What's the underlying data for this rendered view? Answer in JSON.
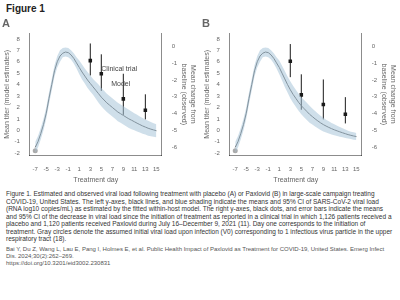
{
  "title": "Figure 1",
  "caption": "Figure 1. Estimated and observed viral load following treatment with placebo (A) or Paxlovid (B) in large-scale campaign treating COVID-19, United States. The left y-axes, black lines, and blue shading indicate the means and 95% CI of SARS-CoV-2 viral load (RNA log10 copies/mL) as estimated by the fitted within-host model. The right y-axes, black dots, and error bars indicate the means and 95% CI of the decrease in viral load since the initiation of treatment as reported in a clinical trial in which 1,126 patients received a placebo and 1,120 patients received Paxlovid during July 16–December 9, 2021 (11). Day one corresponds to the initiation of treatment. Gray circles denote the assumed initial viral load upon infection (V0) corresponding to 1 infectious virus particle in the upper respiratory tract (18).",
  "ref": "Bai Y, Du Z, Wang L, Lau E, Pang I, Holmes E, et al. Public Health Impact of Paxlovid as Treatment for COVID-19, United States. Emerg Infect Dis. 2024;30(2):262–269.\nhttps://doi.org/10.3201/eid3002.230831",
  "chart_data": [
    {
      "type": "line",
      "title": "A",
      "xlabel": "Treatment day",
      "ylabel": "Mean titer (model estimates)",
      "y2label": "Mean change from\nbaseline (observed)",
      "xlim": [
        -8,
        16
      ],
      "xticks": [
        -7,
        -5,
        -3,
        -1,
        1,
        3,
        5,
        7,
        9,
        11,
        13,
        15
      ],
      "ylim": [
        -2.2,
        8.5
      ],
      "yticks": [
        -2,
        -1,
        0,
        1,
        2,
        3,
        4,
        5,
        6,
        7,
        8
      ],
      "y2lim": [
        -6.5,
        0.8
      ],
      "y2ticks": [
        -6,
        -5,
        -4,
        -3,
        -2,
        -1,
        0
      ],
      "grid": false,
      "x": [
        -7.0,
        -6.5,
        -6.0,
        -5.5,
        -5.0,
        -4.5,
        -4.0,
        -3.5,
        -3.0,
        -2.5,
        -2.0,
        -1.5,
        -1.0,
        -0.5,
        0.0,
        0.5,
        1.0,
        1.5,
        2.0,
        2.5,
        3.0,
        3.5,
        4.0,
        4.5,
        5.0,
        5.5,
        6.0,
        6.5,
        7.0,
        7.5,
        8.0,
        8.5,
        9.0,
        9.5,
        10.0,
        10.5,
        11.0,
        11.5,
        12.0,
        12.5,
        13.0,
        13.5,
        14.0,
        14.5,
        15.0
      ],
      "series": [
        {
          "type": "area",
          "color": "#a8c4d8",
          "values": [
            -1.0,
            -0.5,
            0.2,
            1.0,
            2.0,
            3.3,
            4.5,
            5.7,
            6.5,
            7.0,
            7.2,
            7.25,
            7.2,
            7.0,
            6.75,
            6.4,
            6.1,
            5.75,
            5.4,
            5.1,
            4.8,
            4.5,
            4.25,
            4.0,
            3.7,
            3.45,
            3.2,
            3.0,
            2.8,
            2.6,
            2.4,
            2.25,
            2.1,
            1.95,
            1.8,
            1.65,
            1.5,
            1.35,
            1.2,
            1.07,
            0.95,
            0.83,
            0.72,
            0.62,
            0.52
          ],
          "lower": [
            -2.0,
            -1.5,
            -0.8,
            0.0,
            1.0,
            2.3,
            3.5,
            4.7,
            5.5,
            6.0,
            6.4,
            6.45,
            6.4,
            6.2,
            5.85,
            5.4,
            4.9,
            4.45,
            4.1,
            3.7,
            3.4,
            3.1,
            2.75,
            2.4,
            2.1,
            1.85,
            1.6,
            1.4,
            1.2,
            1.0,
            0.8,
            0.65,
            0.5,
            0.35,
            0.2,
            0.1,
            0.0,
            -0.1,
            -0.2,
            -0.3,
            -0.38,
            -0.47,
            -0.52,
            -0.56,
            -0.6
          ]
        },
        {
          "type": "line",
          "color": "#555555",
          "values": [
            -1.5,
            -1.0,
            -0.3,
            0.5,
            1.5,
            2.8,
            4.0,
            5.2,
            6.0,
            6.5,
            6.75,
            6.85,
            6.8,
            6.6,
            6.3,
            5.9,
            5.5,
            5.1,
            4.75,
            4.4,
            4.1,
            3.8,
            3.5,
            3.2,
            2.9,
            2.65,
            2.4,
            2.2,
            2.0,
            1.8,
            1.6,
            1.45,
            1.3,
            1.15,
            1.0,
            0.88,
            0.75,
            0.62,
            0.5,
            0.38,
            0.28,
            0.18,
            0.1,
            0.03,
            -0.04
          ]
        },
        {
          "type": "scatter",
          "marker": "square",
          "color": "#1a1a1a",
          "x": [
            3,
            5,
            9,
            13
          ],
          "values": [
            6.1,
            4.95,
            2.75,
            1.75
          ],
          "error_upper": [
            1.5,
            1.7,
            2.2,
            1.4
          ],
          "error_lower": [
            1.3,
            1.5,
            1.4,
            0.8
          ]
        },
        {
          "type": "scatter",
          "marker": "circle",
          "color": "#aaaaaa",
          "x": [
            -7
          ],
          "values": [
            -1.8
          ]
        }
      ],
      "annotations": [
        {
          "text": "Clinical trial",
          "x": 5.0,
          "y": 5.2
        },
        {
          "text": "Model",
          "x": 6.8,
          "y": 3.9
        }
      ]
    },
    {
      "type": "line",
      "title": "B",
      "xlabel": "Treatment day",
      "ylabel": "Mean titer (model estimates)",
      "y2label": "Mean change from\nbaseline (observed)",
      "xlim": [
        -8,
        16
      ],
      "xticks": [
        -7,
        -5,
        -3,
        -1,
        1,
        3,
        5,
        7,
        9,
        11,
        13,
        15
      ],
      "ylim": [
        -2.2,
        8.5
      ],
      "yticks": [
        -2,
        -1,
        0,
        1,
        2,
        3,
        4,
        5,
        6,
        7,
        8
      ],
      "y2lim": [
        -6.5,
        0.8
      ],
      "y2ticks": [
        -6,
        -5,
        -4,
        -3,
        -2,
        -1,
        0
      ],
      "grid": false,
      "x": [
        -7.0,
        -6.5,
        -6.0,
        -5.5,
        -5.0,
        -4.5,
        -4.0,
        -3.5,
        -3.0,
        -2.5,
        -2.0,
        -1.5,
        -1.0,
        -0.5,
        0.0,
        0.5,
        1.0,
        1.5,
        2.0,
        2.5,
        3.0,
        3.5,
        4.0,
        4.5,
        5.0,
        5.5,
        6.0,
        6.5,
        7.0,
        7.5,
        8.0,
        8.5,
        9.0,
        9.5,
        10.0,
        10.5,
        11.0,
        11.5,
        12.0,
        12.5,
        13.0,
        13.5,
        14.0,
        14.5,
        15.0
      ],
      "series": [
        {
          "type": "area",
          "color": "#a8c4d8",
          "values": [
            -1.0,
            -0.5,
            0.2,
            1.0,
            2.0,
            3.3,
            4.5,
            5.7,
            6.5,
            7.0,
            7.2,
            7.25,
            7.2,
            7.0,
            6.75,
            6.4,
            6.1,
            5.65,
            5.2,
            4.7,
            4.3,
            3.9,
            3.55,
            3.2,
            2.9,
            2.65,
            2.4,
            2.15,
            1.9,
            1.68,
            1.47,
            1.28,
            1.1,
            0.93,
            0.78,
            0.64,
            0.52,
            0.4,
            0.28,
            0.17,
            0.07,
            -0.04,
            -0.12,
            -0.18,
            -0.24
          ],
          "lower": [
            -2.0,
            -1.5,
            -0.8,
            0.0,
            1.0,
            2.3,
            3.5,
            4.7,
            5.5,
            6.0,
            6.4,
            6.45,
            6.4,
            6.2,
            5.85,
            5.4,
            4.9,
            4.35,
            3.8,
            3.3,
            2.8,
            2.4,
            2.05,
            1.7,
            1.4,
            1.15,
            0.9,
            0.65,
            0.5,
            0.32,
            0.17,
            0.02,
            -0.1,
            -0.19,
            -0.28,
            -0.36,
            -0.44,
            -0.5,
            -0.56,
            -0.61,
            -0.67,
            -0.72,
            -0.76,
            -0.82,
            -0.86
          ]
        },
        {
          "type": "line",
          "color": "#555555",
          "values": [
            -1.5,
            -1.0,
            -0.3,
            0.5,
            1.5,
            2.8,
            4.0,
            5.2,
            6.0,
            6.5,
            6.75,
            6.85,
            6.8,
            6.6,
            6.3,
            5.9,
            5.5,
            5.0,
            4.5,
            4.0,
            3.55,
            3.15,
            2.8,
            2.45,
            2.15,
            1.9,
            1.65,
            1.4,
            1.2,
            1.0,
            0.82,
            0.65,
            0.5,
            0.37,
            0.25,
            0.14,
            0.04,
            -0.05,
            -0.14,
            -0.22,
            -0.3,
            -0.38,
            -0.44,
            -0.5,
            -0.55
          ]
        },
        {
          "type": "scatter",
          "marker": "square",
          "color": "#1a1a1a",
          "x": [
            3,
            5,
            9,
            13
          ],
          "values": [
            6.05,
            3.1,
            2.25,
            1.4
          ],
          "error_upper": [
            1.5,
            1.8,
            2.2,
            1.5
          ],
          "error_lower": [
            1.4,
            1.3,
            1.3,
            0.8
          ]
        },
        {
          "type": "scatter",
          "marker": "circle",
          "color": "#aaaaaa",
          "x": [
            -7
          ],
          "values": [
            -1.8
          ]
        }
      ]
    }
  ]
}
